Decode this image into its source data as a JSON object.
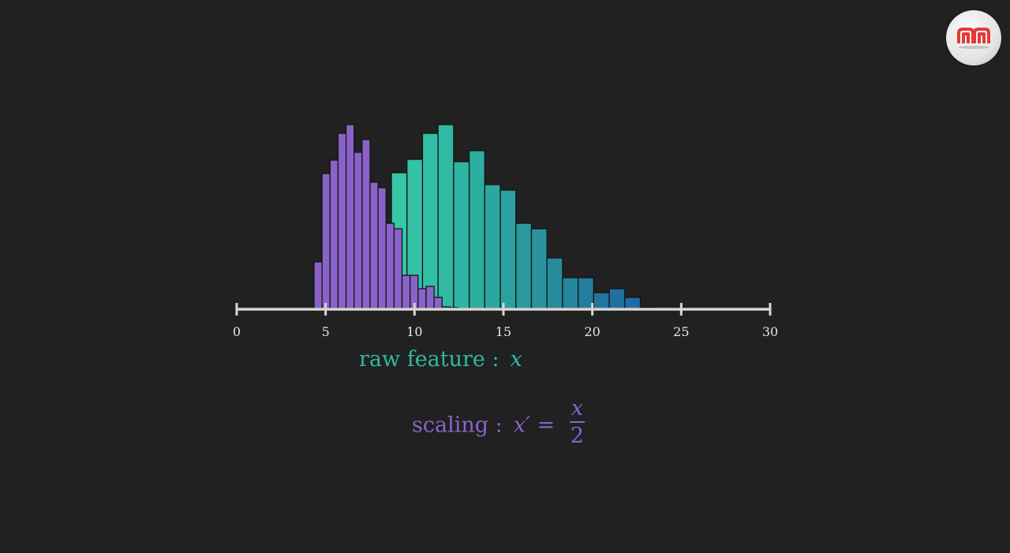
{
  "chart_data": {
    "type": "bar",
    "title": "",
    "xlim": [
      0,
      30
    ],
    "x_ticks": [
      "0",
      "5",
      "10",
      "15",
      "20",
      "25",
      "30"
    ],
    "grid": false,
    "series": [
      {
        "label_text": "scaling :",
        "formula": {
          "lhs": "x′ =",
          "numerator": "x",
          "denominator": "2"
        },
        "bin_width": 0.45,
        "bin_start": 4.35,
        "color": "#8a63c9",
        "values": [
          59,
          171,
          188,
          222,
          233,
          198,
          214,
          160,
          153,
          108,
          101,
          42,
          42,
          25,
          28,
          14,
          2,
          1,
          0
        ]
      },
      {
        "label_text": "raw feature :",
        "variable": "x",
        "bin_width": 0.875,
        "bin_start": 8.7,
        "colors": [
          "#37c6a6",
          "#2fb9a3",
          "#2ca49e",
          "#278f9c",
          "#22779d",
          "#1f64a8"
        ],
        "values": [
          172,
          189,
          222,
          233,
          186,
          200,
          157,
          150,
          108,
          101,
          64,
          39,
          39,
          20,
          25,
          14,
          1
        ]
      }
    ]
  },
  "logo": {
    "text": "ᴨᴨ",
    "color": "#e53935"
  }
}
